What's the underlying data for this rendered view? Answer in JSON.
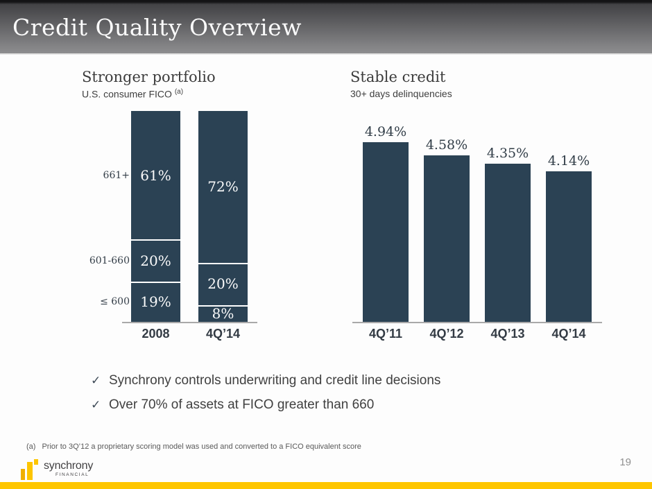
{
  "header": {
    "title": "Credit Quality Overview"
  },
  "left_chart": {
    "title": "Stronger portfolio",
    "subtitle": "U.S. consumer FICO ",
    "subtitle_sup": "(a)"
  },
  "right_chart": {
    "title": "Stable credit",
    "subtitle": "30+ days delinquencies"
  },
  "icons": {
    "check": "✓"
  },
  "bullets": [
    {
      "text": "Synchrony controls underwriting and credit line decisions"
    },
    {
      "text": "Over 70% of assets at FICO greater than 660"
    }
  ],
  "footnote": {
    "marker": "(a)",
    "text": "Prior to 3Q’12 a proprietary scoring model was used and converted to a FICO equivalent score"
  },
  "footer": {
    "page_number": "19",
    "logo_brand": "synchrony",
    "logo_sub": "FINANCIAL"
  },
  "colors": {
    "bar": "#2b4254",
    "accent_gold": "#fec600",
    "axis_gray": "#a9a9a9"
  },
  "chart_data": [
    {
      "type": "bar",
      "variant": "stacked-100",
      "title": "Stronger portfolio",
      "subtitle": "U.S. consumer FICO (a)",
      "categories": [
        "2008",
        "4Q’14"
      ],
      "series": [
        {
          "name": "≤ 600",
          "values": [
            19,
            8
          ]
        },
        {
          "name": "601-660",
          "values": [
            20,
            20
          ]
        },
        {
          "name": "661+",
          "values": [
            61,
            72
          ]
        }
      ],
      "value_labels": [
        [
          "19%",
          "8%"
        ],
        [
          "20%",
          "20%"
        ],
        [
          "61%",
          "72%"
        ]
      ],
      "unit": "%",
      "ylim": [
        0,
        100
      ],
      "grid": false,
      "legend": "row-labels-left",
      "bar_color": "#2b4254"
    },
    {
      "type": "bar",
      "title": "Stable credit",
      "subtitle": "30+ days delinquencies",
      "categories": [
        "4Q’11",
        "4Q’12",
        "4Q’13",
        "4Q’14"
      ],
      "values": [
        4.94,
        4.58,
        4.35,
        4.14
      ],
      "labels": [
        "4.94%",
        "4.58%",
        "4.35%",
        "4.14%"
      ],
      "unit": "%",
      "ylim": [
        0,
        5.2
      ],
      "grid": false,
      "legend": "none",
      "bar_color": "#2b4254"
    }
  ]
}
